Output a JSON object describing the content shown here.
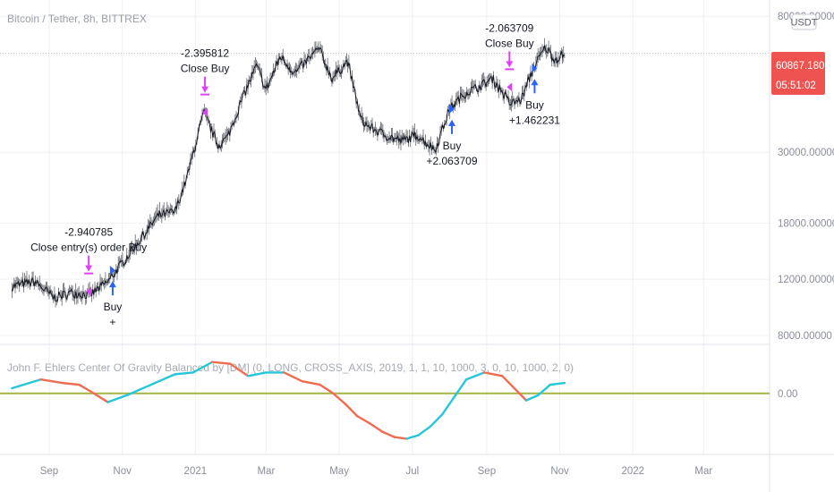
{
  "symbol_title": "Bitcoin / Tether, 8h, BITTREX",
  "indicator_title": "John F. Ehlers Center Of Gravity Balanced by [DM] (0, LONG, CROSS_AXIS, 2019, 1, 1, 10, 1000, 3, 0, 10, 1000, 2, 0)",
  "currency_badge": "USDT",
  "last_price_badge": {
    "price": "60867.18010",
    "countdown": "05:51:02",
    "color": "#ef5350"
  },
  "colors": {
    "price": "#131722",
    "buy": "#2962ff",
    "sell": "#e040fb",
    "cog": "#26c6da",
    "cog_down": "#ef6c50",
    "zero_line": "#a5b347",
    "grid": "#eef0f3",
    "axis_text": "#8a8e99"
  },
  "chart_data": [
    {
      "type": "line",
      "title": "Bitcoin / Tether, 8h, BITTREX",
      "y_scale": "log",
      "ylim": [
        7500,
        90000
      ],
      "y_ticks": [
        {
          "value": 8000,
          "label": "8000.00000"
        },
        {
          "value": 12000,
          "label": "12000.00000"
        },
        {
          "value": 18000,
          "label": "18000.00000"
        },
        {
          "value": 30000,
          "label": "30000.00000"
        },
        {
          "value": 80000,
          "label": "80000.00000"
        }
      ],
      "x_ticks": [
        "Sep",
        "Nov",
        "2021",
        "Mar",
        "May",
        "Jul",
        "Sep",
        "Nov",
        "2022",
        "Mar"
      ],
      "series": [
        {
          "x": [
            "2020-08-01",
            "2020-08-20",
            "2020-09-05",
            "2020-09-20",
            "2020-10-05",
            "2020-10-20",
            "2020-11-01",
            "2020-11-15",
            "2020-12-01",
            "2020-12-15",
            "2020-12-25",
            "2021-01-08",
            "2021-01-20",
            "2021-01-28",
            "2021-02-10",
            "2021-02-21",
            "2021-03-01",
            "2021-03-13",
            "2021-03-25",
            "2021-04-14",
            "2021-04-25",
            "2021-05-08",
            "2021-05-19",
            "2021-05-26",
            "2021-06-08",
            "2021-06-22",
            "2021-07-05",
            "2021-07-20",
            "2021-08-01",
            "2021-08-14",
            "2021-08-25",
            "2021-09-06",
            "2021-09-21",
            "2021-09-30",
            "2021-10-10",
            "2021-10-20",
            "2021-10-28",
            "2021-11-05"
          ],
          "values": [
            11400,
            11800,
            10500,
            10900,
            10700,
            11800,
            13500,
            15800,
            19000,
            19500,
            25000,
            40000,
            31500,
            33500,
            45000,
            56000,
            47000,
            60000,
            53000,
            63500,
            51000,
            58000,
            38000,
            36000,
            34000,
            32500,
            34000,
            30500,
            41000,
            46000,
            48000,
            51000,
            42500,
            44000,
            55000,
            64000,
            58500,
            61200
          ]
        }
      ],
      "annotations": [
        {
          "type": "buy",
          "date": "2020-10-24",
          "price": 12800,
          "label": "Buy",
          "value": "+"
        },
        {
          "type": "close",
          "date": "2020-10-04",
          "price": 11000,
          "label": "Close entry(s) order Buy",
          "value": "-2.940785"
        },
        {
          "type": "close",
          "date": "2021-01-09",
          "price": 40000,
          "label": "Close Buy",
          "value": "-2.395812"
        },
        {
          "type": "buy",
          "date": "2021-08-03",
          "price": 41000,
          "label": "Buy",
          "value": "+2.063709"
        },
        {
          "type": "close",
          "date": "2021-09-20",
          "price": 48000,
          "label": "Close Buy",
          "value": "-2.063709"
        },
        {
          "type": "buy",
          "date": "2021-10-11",
          "price": 55000,
          "label": "Buy",
          "value": "+1.462231"
        }
      ]
    },
    {
      "type": "line",
      "title": "John F. Ehlers Center Of Gravity Balanced by [DM]",
      "ylim": [
        -3.5,
        2.3
      ],
      "y_ticks": [
        {
          "value": 0,
          "label": "0.00"
        }
      ],
      "series": [
        {
          "x": [
            "2020-08-01",
            "2020-08-25",
            "2020-09-12",
            "2020-09-26",
            "2020-10-06",
            "2020-10-20",
            "2020-11-05",
            "2020-11-25",
            "2020-12-15",
            "2020-12-30",
            "2021-01-15",
            "2021-01-30",
            "2021-02-14",
            "2021-03-01",
            "2021-03-16",
            "2021-03-31",
            "2021-04-15",
            "2021-04-26",
            "2021-05-06",
            "2021-05-16",
            "2021-05-26",
            "2021-06-06",
            "2021-06-16",
            "2021-06-26",
            "2021-07-06",
            "2021-07-16",
            "2021-07-26",
            "2021-08-05",
            "2021-08-15",
            "2021-08-30",
            "2021-09-14",
            "2021-09-24",
            "2021-10-04",
            "2021-10-14",
            "2021-10-24",
            "2021-11-05"
          ],
          "values": [
            0.3,
            0.8,
            0.6,
            0.5,
            0.1,
            -0.5,
            -0.1,
            0.5,
            1.1,
            1.2,
            1.8,
            1.7,
            1.0,
            1.2,
            1.2,
            0.7,
            0.5,
            0.0,
            -0.6,
            -1.3,
            -1.7,
            -2.2,
            -2.5,
            -2.6,
            -2.4,
            -1.9,
            -1.2,
            -0.2,
            0.8,
            1.2,
            1.0,
            0.3,
            -0.4,
            -0.1,
            0.5,
            0.6
          ]
        }
      ]
    }
  ]
}
